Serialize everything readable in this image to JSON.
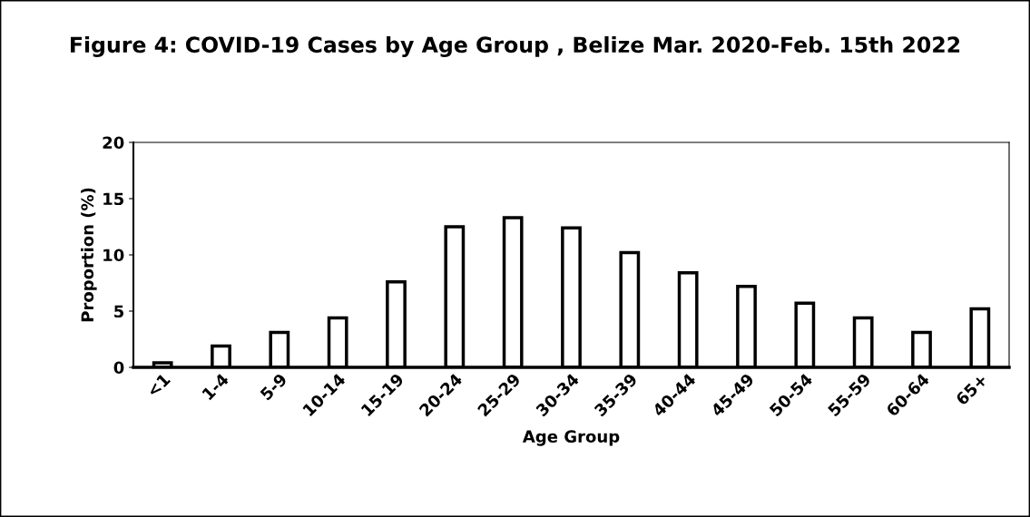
{
  "chart_data": {
    "type": "bar",
    "title": "Figure 4: COVID-19 Cases by Age Group , Belize Mar. 2020-Feb. 15th 2022",
    "xlabel": "Age Group",
    "ylabel": "Proportion (%)",
    "categories": [
      "<1",
      "1-4",
      "5-9",
      "10-14",
      "15-19",
      "20-24",
      "25-29",
      "30-34",
      "35-39",
      "40-44",
      "45-49",
      "50-54",
      "55-59",
      "60-64",
      "65+"
    ],
    "values": [
      0.4,
      1.9,
      3.1,
      4.4,
      7.6,
      12.5,
      13.3,
      12.4,
      10.2,
      8.4,
      7.2,
      5.7,
      4.4,
      3.1,
      5.2
    ],
    "color": "#ffffff",
    "ylim": [
      0,
      20
    ],
    "yticks": [
      0,
      5,
      10,
      15,
      20
    ],
    "grid": false,
    "legend": false
  }
}
